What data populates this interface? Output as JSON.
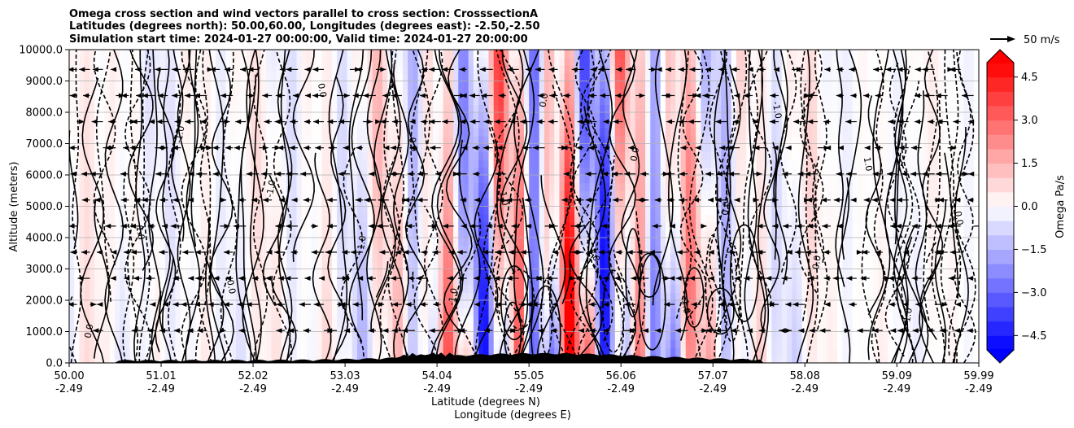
{
  "chart_data": {
    "type": "heatmap",
    "title_lines": [
      "Omega cross section and wind vectors parallel to cross section: CrosssectionA",
      "Latitudes (degrees north): 50.00,60.00, Longitudes (degrees east): -2.50,-2.50",
      "Simulation start time: 2024-01-27 00:00:00, Valid time: 2024-01-27 20:00:00"
    ],
    "ylabel": "Altitude (meters)",
    "xlabel_lines": [
      "Latitude (degrees N)",
      "Longitude (degrees E)"
    ],
    "ylim": [
      0,
      10000
    ],
    "y_ticks": [
      "0.0",
      "1000.0",
      "2000.0",
      "3000.0",
      "4000.0",
      "5000.0",
      "6000.0",
      "7000.0",
      "8000.0",
      "9000.0",
      "10000.0"
    ],
    "xlim": [
      50.0,
      59.99
    ],
    "x_ticks": [
      {
        "value": 50.0,
        "lat": "50.00",
        "lon": "-2.49"
      },
      {
        "value": 51.01,
        "lat": "51.01",
        "lon": "-2.49"
      },
      {
        "value": 52.02,
        "lat": "52.02",
        "lon": "-2.49"
      },
      {
        "value": 53.03,
        "lat": "53.03",
        "lon": "-2.49"
      },
      {
        "value": 54.04,
        "lat": "54.04",
        "lon": "-2.49"
      },
      {
        "value": 55.05,
        "lat": "55.05",
        "lon": "-2.49"
      },
      {
        "value": 56.06,
        "lat": "56.06",
        "lon": "-2.49"
      },
      {
        "value": 57.07,
        "lat": "57.07",
        "lon": "-2.49"
      },
      {
        "value": 58.08,
        "lat": "58.08",
        "lon": "-2.49"
      },
      {
        "value": 59.09,
        "lat": "59.09",
        "lon": "-2.49"
      },
      {
        "value": 59.99,
        "lat": "59.99",
        "lon": "-2.49"
      }
    ],
    "grid": true,
    "colorbar": {
      "label": "Omega Pa/s",
      "range": [
        -5,
        5
      ],
      "ticks": [
        "4.5",
        "3.0",
        "1.5",
        "0.0",
        "−1.5",
        "−3.0",
        "−4.5"
      ],
      "tick_values": [
        4.5,
        3.0,
        1.5,
        0.0,
        -1.5,
        -3.0,
        -4.5
      ],
      "extend": "both"
    },
    "vector_key": {
      "label": "50 m/s",
      "speed": 50
    },
    "colors": {
      "positive": "#ff0000",
      "negative": "#0000ff",
      "neutral": "#ffffff",
      "terrain": "#000000"
    },
    "contour_labels": [
      "0.0",
      "1.0",
      "-1.0",
      "0.0",
      "-1.0",
      "0.0",
      "1.0",
      "0.0",
      "-1.0",
      "1.0",
      "0.0",
      "-1.0",
      "0.0",
      "1.0",
      "0.0",
      "-1.0",
      "0.0",
      "1.0",
      "-1.0",
      "0.0"
    ]
  }
}
